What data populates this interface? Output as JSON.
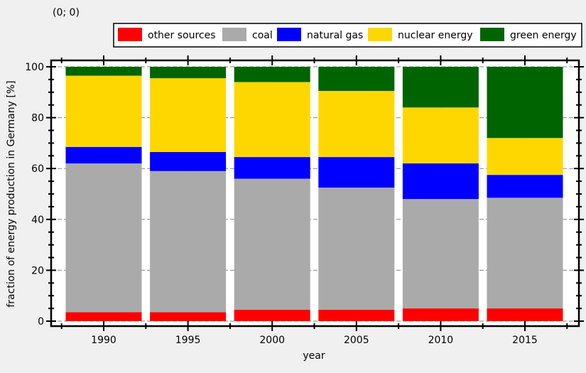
{
  "coordinate_readout": "(0; 0)",
  "chart_data": {
    "type": "bar",
    "stacked": true,
    "categories": [
      "1990",
      "1995",
      "2000",
      "2005",
      "2010",
      "2015"
    ],
    "series": [
      {
        "name": "other sources",
        "color": "#ff0000",
        "values": [
          3.5,
          3.5,
          4.5,
          4.5,
          5,
          5
        ]
      },
      {
        "name": "coal",
        "color": "#aaaaaa",
        "values": [
          58.5,
          55.5,
          51.5,
          48,
          43,
          43.5
        ]
      },
      {
        "name": "natural gas",
        "color": "#0000ff",
        "values": [
          6.5,
          7.5,
          8.5,
          12,
          14,
          9
        ]
      },
      {
        "name": "nuclear energy",
        "color": "#ffd700",
        "values": [
          28,
          29,
          29.5,
          26,
          22,
          14.5
        ]
      },
      {
        "name": "green energy",
        "color": "#006400",
        "values": [
          3.5,
          4.5,
          6,
          9.5,
          16,
          28
        ]
      }
    ],
    "xlabel": "year",
    "ylabel": "fraction of energy production in Germany [%]",
    "ylim": [
      0,
      100
    ],
    "yticks": [
      0,
      20,
      40,
      60,
      80,
      100
    ],
    "grid": true,
    "legend_position": "top"
  }
}
